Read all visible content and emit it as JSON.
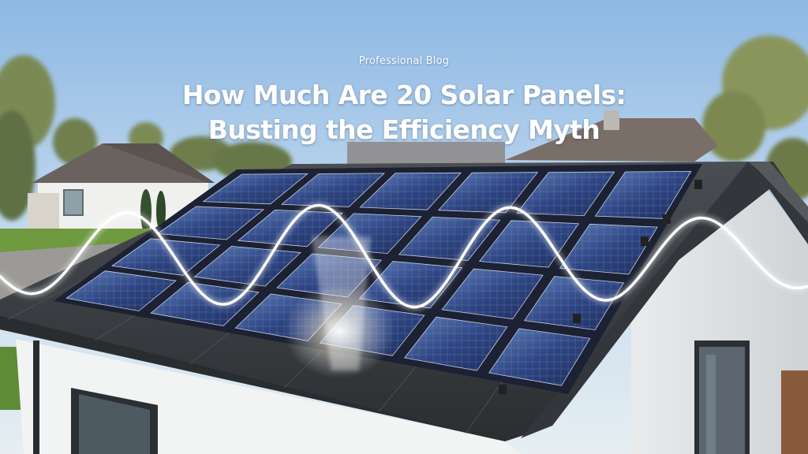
{
  "blog": {
    "kicker": "Professional Blog",
    "title_line1": "How Much Are 20 Solar Panels:",
    "title_line2": "Busting the Efficiency Myth"
  },
  "scene": {
    "colors": {
      "sky_top": "#8db8e4",
      "sky_bottom": "#d9e8f2",
      "roof": "#3e4246",
      "panel_cell": "#2a3f7a",
      "energy_wave": "#ffffff"
    },
    "panels": {
      "rows": 4,
      "columns": 6
    }
  }
}
